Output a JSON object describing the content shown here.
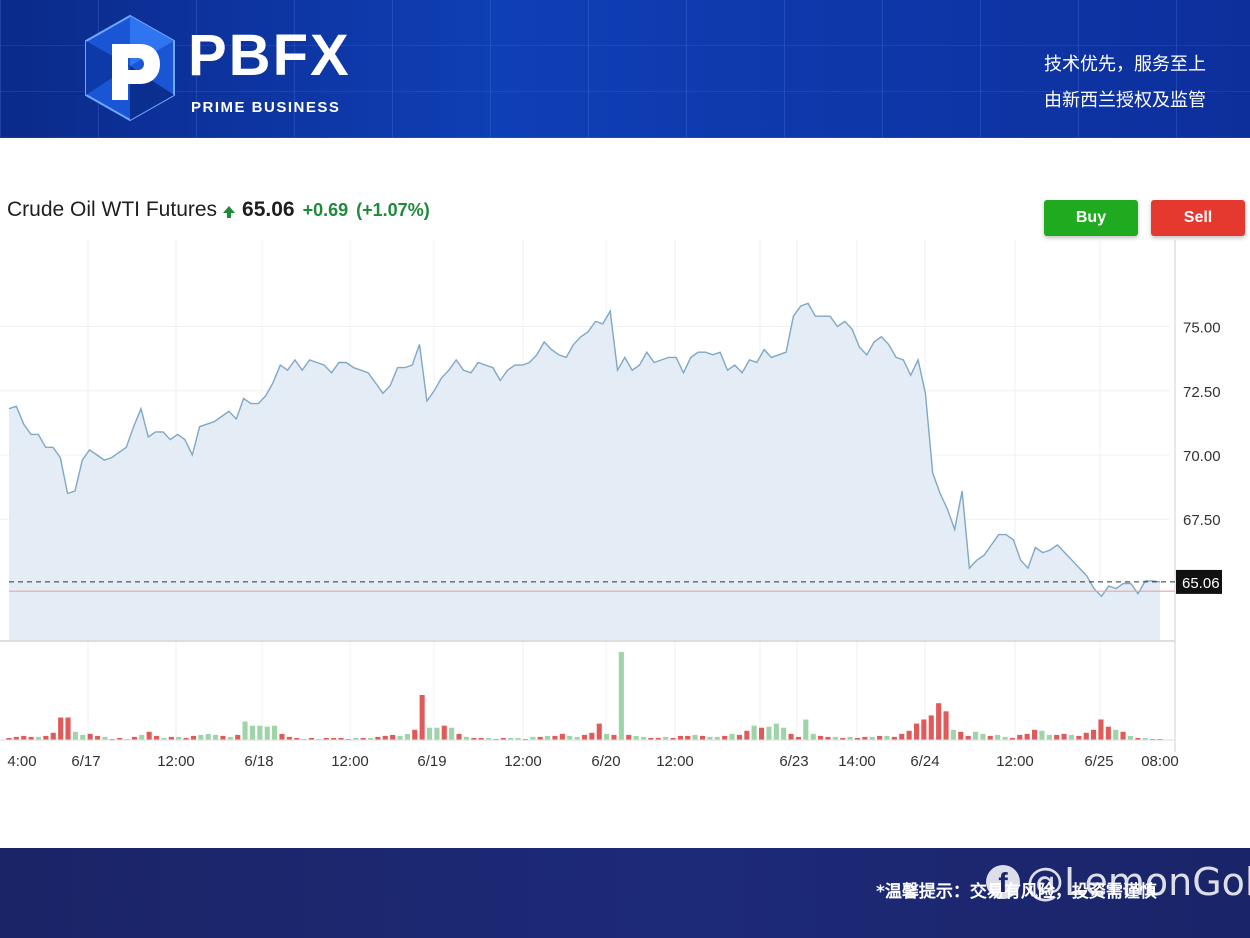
{
  "banner": {
    "brand_name": "PBFX",
    "brand_sub": "PRIME BUSINESS",
    "slogan_1": "技术优先，服务至上",
    "slogan_2": "由新西兰授权及监管"
  },
  "header": {
    "instrument": "Crude Oil WTI Futures",
    "last_price": "65.06",
    "change": "+0.69",
    "change_pct": "(+1.07%)",
    "up_color": "#1e8a3a"
  },
  "actions": {
    "buy_label": "Buy",
    "sell_label": "Sell",
    "buy_color": "#1faa1f",
    "sell_color": "#e53930"
  },
  "footer": {
    "disclaimer": "*温馨提示：交易有风险，投资需谨慎",
    "watermark": "@LemonGold",
    "fb_glyph": "f"
  },
  "chart_data": {
    "type": "area",
    "title": "Crude Oil WTI Futures",
    "xlabel": "",
    "ylabel": "",
    "ylim": [
      62.8,
      77.9
    ],
    "y_ticks": [
      75.0,
      72.5,
      70.0,
      67.5
    ],
    "y_tick_labels": [
      "75.00",
      "72.50",
      "70.00",
      "67.50"
    ],
    "x_tick_labels": [
      "4:00",
      "6/17",
      "12:00",
      "6/18",
      "12:00",
      "6/19",
      "12:00",
      "6/20",
      "12:00",
      "6/23",
      "14:00",
      "6/24",
      "12:00",
      "6/25",
      "08:00"
    ],
    "last_value": 65.06,
    "last_value_label": "65.06",
    "reference_line": 64.7,
    "grid": true,
    "line_color": "#7fa7c6",
    "fill_color": "#e4edf5",
    "series": [
      {
        "values": [
          71.8,
          71.9,
          71.2,
          70.8,
          70.8,
          70.3,
          70.3,
          69.9,
          68.5,
          68.6,
          69.8,
          70.2,
          70.0,
          69.8,
          69.9,
          70.1,
          70.3,
          71.1,
          71.8,
          70.7,
          70.9,
          70.9,
          70.6,
          70.8,
          70.6,
          70.0,
          71.1,
          71.2,
          71.3,
          71.5,
          71.7,
          71.4,
          72.2,
          72.0,
          72.0,
          72.3,
          72.8,
          73.5,
          73.3,
          73.7,
          73.3,
          73.7,
          73.6,
          73.5,
          73.2,
          73.6,
          73.6,
          73.4,
          73.3,
          73.2,
          72.8,
          72.4,
          72.7,
          73.4,
          73.4,
          73.5,
          74.3,
          72.1,
          72.5,
          73.0,
          73.3,
          73.7,
          73.3,
          73.2,
          73.6,
          73.5,
          73.4,
          72.9,
          73.3,
          73.5,
          73.5,
          73.6,
          73.9,
          74.4,
          74.1,
          73.9,
          73.8,
          74.3,
          74.6,
          74.8,
          75.2,
          75.1,
          75.6,
          73.3,
          73.8,
          73.3,
          73.5,
          74.0,
          73.6,
          73.7,
          73.8,
          73.8,
          73.2,
          73.8,
          74.0,
          74.0,
          73.9,
          74.0,
          73.3,
          73.5,
          73.2,
          73.7,
          73.6,
          74.1,
          73.8,
          73.9,
          74.0,
          75.4,
          75.8,
          75.9,
          75.4,
          75.4,
          75.4,
          75.0,
          75.2,
          74.9,
          74.2,
          73.9,
          74.4,
          74.6,
          74.3,
          73.8,
          73.7,
          73.1,
          73.7,
          72.4,
          69.3,
          68.5,
          67.9,
          67.1,
          68.6,
          65.6,
          65.9,
          66.1,
          66.5,
          66.9,
          66.9,
          66.7,
          65.9,
          65.6,
          66.4,
          66.2,
          66.3,
          66.5,
          66.2,
          65.9,
          65.6,
          65.3,
          64.8,
          64.5,
          64.9,
          64.8,
          65.0,
          65.0,
          64.6,
          65.1,
          65.1,
          65.06
        ]
      }
    ],
    "volume": {
      "values": [
        2,
        3,
        4,
        3,
        3,
        4,
        7,
        22,
        22,
        8,
        5,
        6,
        4,
        3,
        1,
        2,
        1,
        3,
        5,
        8,
        4,
        2,
        3,
        3,
        2,
        4,
        5,
        6,
        5,
        4,
        3,
        5,
        18,
        14,
        14,
        13,
        14,
        6,
        3,
        2,
        1,
        2,
        1,
        2,
        2,
        2,
        1,
        2,
        2,
        2,
        3,
        4,
        5,
        4,
        6,
        10,
        44,
        12,
        12,
        14,
        12,
        6,
        3,
        2,
        2,
        2,
        1,
        2,
        2,
        2,
        1,
        3,
        3,
        4,
        4,
        6,
        4,
        3,
        5,
        7,
        16,
        6,
        5,
        86,
        5,
        4,
        3,
        2,
        2,
        3,
        2,
        4,
        4,
        5,
        4,
        3,
        3,
        4,
        6,
        5,
        9,
        14,
        12,
        13,
        16,
        12,
        6,
        3,
        20,
        6,
        4,
        3,
        3,
        2,
        3,
        2,
        3,
        3,
        4,
        4,
        3,
        6,
        9,
        16,
        20,
        24,
        36,
        28,
        10,
        8,
        4,
        8,
        6,
        4,
        5,
        3,
        2,
        5,
        6,
        10,
        9,
        5,
        5,
        6,
        5,
        4,
        7,
        10,
        20,
        13,
        10,
        8,
        4,
        2,
        2,
        1,
        1
      ],
      "up": [
        false,
        false,
        false,
        false,
        true,
        false,
        false,
        false,
        false,
        true,
        true,
        false,
        false,
        true,
        false,
        false,
        true,
        false,
        true,
        false,
        false,
        true,
        false,
        true,
        false,
        false,
        true,
        true,
        true,
        false,
        true,
        false,
        true,
        true,
        true,
        true,
        true,
        false,
        false,
        false,
        true,
        false,
        true,
        false,
        false,
        false,
        false,
        true,
        false,
        true,
        false,
        false,
        false,
        true,
        true,
        false,
        false,
        true,
        true,
        false,
        true,
        false,
        true,
        false,
        false,
        true,
        false,
        false,
        true,
        true,
        false,
        true,
        false,
        true,
        false,
        false,
        true,
        true,
        false,
        false,
        false,
        true,
        false,
        true,
        false,
        true,
        true,
        false,
        false,
        true,
        false,
        false,
        false,
        true,
        false,
        true,
        true,
        false,
        true,
        false,
        false,
        true,
        false,
        true,
        true,
        true,
        false,
        false,
        true,
        true,
        false,
        false,
        true,
        false,
        true,
        false,
        false,
        true,
        false,
        true,
        false,
        false,
        false,
        false,
        false,
        false,
        false,
        false,
        true,
        false,
        false,
        true,
        true,
        false,
        true,
        true,
        false,
        false,
        false,
        false,
        true,
        true,
        false,
        false,
        true,
        false,
        false,
        false,
        false,
        false,
        true,
        false,
        true,
        false,
        true,
        false,
        false
      ],
      "up_color": "#9fd4a8",
      "down_color": "#e05a5a"
    }
  }
}
